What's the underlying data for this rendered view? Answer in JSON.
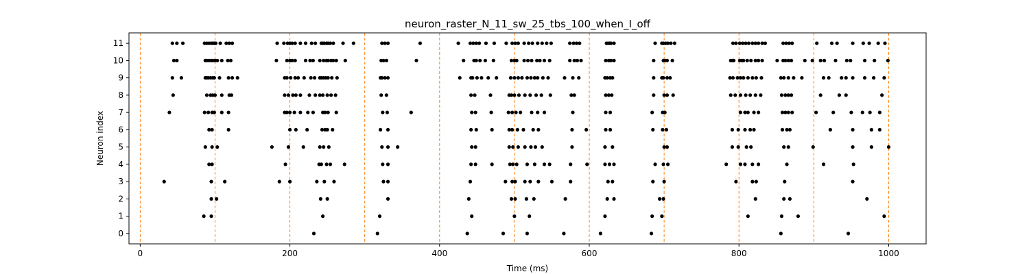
{
  "chart_data": {
    "type": "scatter",
    "title": "neuron_raster_N_11_sw_25_tbs_100_when_I_off",
    "xlabel": "Time (ms)",
    "ylabel": "Neuron index",
    "xlim": [
      -15,
      1050
    ],
    "ylim": [
      -0.6,
      11.6
    ],
    "x_ticks": [
      0,
      200,
      400,
      600,
      800,
      1000
    ],
    "y_ticks": [
      0,
      1,
      2,
      3,
      4,
      5,
      6,
      7,
      8,
      9,
      10,
      11
    ],
    "grid": false,
    "legend": "none",
    "marker_color": "#000000",
    "vline_color": "#ff7f0e",
    "vlines": [
      0,
      100,
      200,
      300,
      400,
      500,
      600,
      700,
      800,
      900,
      1000
    ],
    "spikes": [
      {
        "neuron": 11,
        "times": [
          43,
          49,
          57,
          86,
          89,
          92,
          95,
          97,
          99,
          101,
          107,
          115,
          119,
          123,
          183,
          192,
          197,
          200,
          203,
          207,
          214,
          221,
          229,
          234,
          242,
          244,
          246,
          249,
          251,
          254,
          258,
          271,
          285,
          323,
          327,
          331,
          374,
          425,
          441,
          445,
          449,
          453,
          462,
          473,
          489,
          497,
          501,
          505,
          513,
          519,
          524,
          531,
          537,
          543,
          549,
          574,
          579,
          583,
          587,
          623,
          625,
          627,
          629,
          633,
          688,
          697,
          699,
          702,
          705,
          709,
          714,
          792,
          796,
          801,
          805,
          809,
          813,
          818,
          822,
          826,
          831,
          835,
          859,
          863,
          867,
          871,
          904,
          924,
          931,
          952,
          966,
          974,
          986,
          995
        ]
      },
      {
        "neuron": 10,
        "times": [
          45,
          49,
          87,
          89,
          92,
          95,
          97,
          100,
          103,
          109,
          117,
          121,
          182,
          196,
          200,
          203,
          207,
          221,
          227,
          231,
          240,
          245,
          249,
          251,
          255,
          258,
          262,
          274,
          322,
          325,
          329,
          369,
          432,
          446,
          449,
          454,
          461,
          472,
          496,
          500,
          503,
          513,
          518,
          523,
          530,
          534,
          540,
          547,
          574,
          580,
          584,
          589,
          622,
          626,
          629,
          633,
          686,
          699,
          701,
          704,
          711,
          789,
          791,
          793,
          801,
          804,
          806,
          811,
          816,
          822,
          826,
          831,
          851,
          859,
          862,
          866,
          870,
          888,
          898,
          909,
          914,
          929,
          944,
          949,
          968,
          981,
          999
        ]
      },
      {
        "neuron": 9,
        "times": [
          43,
          55,
          87,
          89,
          91,
          94,
          97,
          99,
          106,
          118,
          123,
          130,
          193,
          196,
          201,
          207,
          211,
          219,
          228,
          233,
          240,
          242,
          245,
          248,
          251,
          256,
          263,
          321,
          323,
          327,
          331,
          427,
          442,
          444,
          450,
          456,
          465,
          476,
          495,
          500,
          505,
          510,
          517,
          522,
          527,
          531,
          538,
          545,
          567,
          578,
          586,
          621,
          624,
          628,
          631,
          686,
          697,
          699,
          704,
          708,
          788,
          792,
          798,
          802,
          806,
          812,
          818,
          823,
          830,
          856,
          860,
          866,
          873,
          884,
          913,
          920,
          937,
          943,
          952,
          968,
          980,
          994
        ]
      },
      {
        "neuron": 8,
        "times": [
          44,
          89,
          94,
          97,
          100,
          109,
          119,
          122,
          193,
          198,
          204,
          208,
          214,
          226,
          234,
          240,
          244,
          250,
          255,
          261,
          322,
          329,
          442,
          447,
          468,
          493,
          496,
          500,
          506,
          514,
          521,
          529,
          536,
          548,
          576,
          580,
          622,
          626,
          630,
          686,
          700,
          704,
          712,
          789,
          795,
          802,
          809,
          815,
          822,
          829,
          857,
          862,
          866,
          870,
          909,
          934,
          943,
          991
        ]
      },
      {
        "neuron": 7,
        "times": [
          39,
          86,
          91,
          96,
          99,
          109,
          118,
          193,
          196,
          200,
          206,
          214,
          224,
          231,
          244,
          247,
          251,
          262,
          324,
          330,
          362,
          443,
          448,
          469,
          492,
          497,
          502,
          508,
          523,
          531,
          540,
          578,
          622,
          628,
          684,
          698,
          701,
          802,
          808,
          812,
          820,
          826,
          858,
          862,
          866,
          871,
          903,
          926,
          950,
          965,
          975,
          988
        ]
      },
      {
        "neuron": 6,
        "times": [
          92,
          96,
          118,
          200,
          208,
          223,
          243,
          247,
          250,
          257,
          321,
          331,
          442,
          449,
          470,
          493,
          497,
          504,
          512,
          525,
          532,
          577,
          596,
          622,
          628,
          685,
          698,
          703,
          791,
          799,
          808,
          815,
          820,
          858,
          864,
          868,
          922,
          952,
          977,
          988
        ]
      },
      {
        "neuron": 5,
        "times": [
          87,
          96,
          103,
          176,
          198,
          218,
          240,
          245,
          252,
          323,
          331,
          344,
          443,
          448,
          493,
          498,
          505,
          514,
          522,
          528,
          537,
          577,
          621,
          631,
          700,
          704,
          791,
          799,
          810,
          816,
          860,
          866,
          899,
          952,
          977,
          1000
        ]
      },
      {
        "neuron": 4,
        "times": [
          92,
          96,
          194,
          239,
          242,
          249,
          254,
          273,
          324,
          331,
          442,
          448,
          470,
          494,
          498,
          503,
          517,
          527,
          540,
          547,
          575,
          597,
          621,
          627,
          633,
          688,
          699,
          705,
          783,
          802,
          808,
          818,
          826,
          864,
          913,
          953
        ]
      },
      {
        "neuron": 3,
        "times": [
          32,
          95,
          113,
          186,
          200,
          236,
          246,
          259,
          325,
          331,
          441,
          488,
          497,
          501,
          514,
          521,
          532,
          550,
          575,
          625,
          631,
          685,
          700,
          796,
          818,
          823,
          861,
          952
        ]
      },
      {
        "neuron": 2,
        "times": [
          95,
          102,
          241,
          250,
          331,
          439,
          496,
          501,
          516,
          526,
          568,
          624,
          633,
          694,
          699,
          822,
          860,
          868,
          971
        ]
      },
      {
        "neuron": 1,
        "times": [
          85,
          95,
          244,
          320,
          443,
          500,
          520,
          621,
          684,
          697,
          812,
          857,
          879,
          994
        ]
      },
      {
        "neuron": 0,
        "times": [
          232,
          317,
          437,
          485,
          517,
          566,
          615,
          683,
          856,
          946
        ]
      }
    ]
  }
}
